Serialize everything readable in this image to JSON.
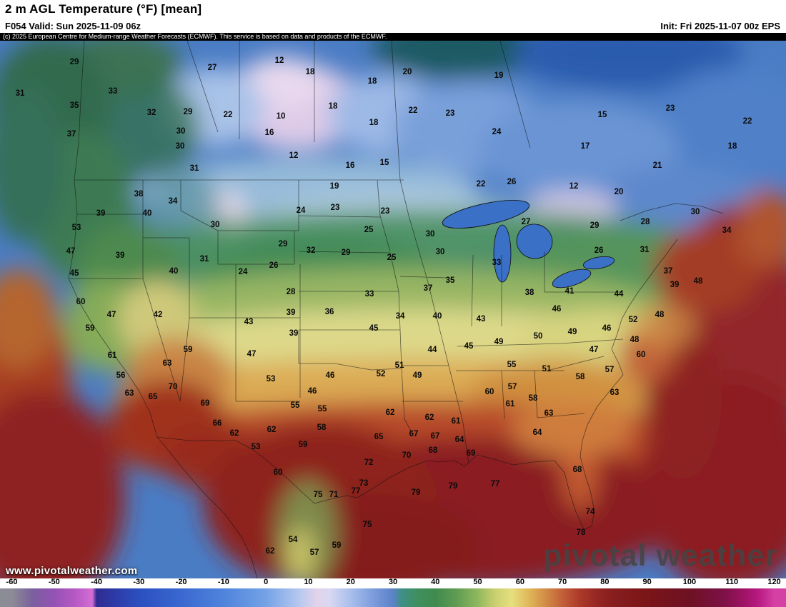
{
  "header": {
    "title": "2 m AGL Temperature (°F) [mean]",
    "valid": "F054 Valid: Sun 2025-11-09 06z",
    "init": "Init: Fri 2025-11-07 00z EPS",
    "copyright": "(c) 2025 European Centre for Medium-range Weather Forecasts (ECMWF). This service is based on data and products of the ECMWF."
  },
  "watermark": {
    "site": "www.pivotalweather.com",
    "brand": "pivotal weather"
  },
  "colorbar": {
    "min": -60,
    "max": 120,
    "tick_values": [
      -60,
      -50,
      -40,
      -30,
      -20,
      -10,
      0,
      10,
      20,
      30,
      40,
      50,
      60,
      70,
      80,
      90,
      100,
      110,
      120
    ],
    "stops": [
      {
        "v": -60,
        "c": "#8c8c96"
      },
      {
        "v": -55,
        "c": "#7a5f9e"
      },
      {
        "v": -50,
        "c": "#9452b4"
      },
      {
        "v": -45,
        "c": "#b758c4"
      },
      {
        "v": -41,
        "c": "#d36ed4"
      },
      {
        "v": -40,
        "c": "#2e2b92"
      },
      {
        "v": -30,
        "c": "#2b4fc0"
      },
      {
        "v": -20,
        "c": "#3a68d0"
      },
      {
        "v": -10,
        "c": "#4f84dc"
      },
      {
        "v": 0,
        "c": "#74a2e6"
      },
      {
        "v": 8,
        "c": "#b7c9ef"
      },
      {
        "v": 12,
        "c": "#e2d2ea"
      },
      {
        "v": 15,
        "c": "#d8d8f2"
      },
      {
        "v": 20,
        "c": "#a9bfec"
      },
      {
        "v": 25,
        "c": "#7f9ede"
      },
      {
        "v": 30,
        "c": "#5b82c8"
      },
      {
        "v": 32,
        "c": "#3f8f86"
      },
      {
        "v": 36,
        "c": "#3f8f5e"
      },
      {
        "v": 40,
        "c": "#418a4f"
      },
      {
        "v": 45,
        "c": "#5f9c52"
      },
      {
        "v": 50,
        "c": "#8fb85e"
      },
      {
        "v": 54,
        "c": "#c9cf6e"
      },
      {
        "v": 58,
        "c": "#e6df7f"
      },
      {
        "v": 62,
        "c": "#e0b85a"
      },
      {
        "v": 66,
        "c": "#d28c46"
      },
      {
        "v": 70,
        "c": "#c25f38"
      },
      {
        "v": 74,
        "c": "#ad3a2a"
      },
      {
        "v": 78,
        "c": "#962722"
      },
      {
        "v": 82,
        "c": "#871d1e"
      },
      {
        "v": 90,
        "c": "#7a1518"
      },
      {
        "v": 100,
        "c": "#6e1123"
      },
      {
        "v": 108,
        "c": "#7c1146"
      },
      {
        "v": 112,
        "c": "#99125f"
      },
      {
        "v": 116,
        "c": "#b5187f"
      },
      {
        "v": 120,
        "c": "#d440a4"
      }
    ]
  },
  "chart_data": {
    "type": "heatmap",
    "title": "2 m AGL Temperature (°F) [mean]",
    "units": "°F",
    "model": "EPS",
    "forecast_hour": "F054",
    "valid_time": "Sun 2025-11-09 06z",
    "init_time": "Fri 2025-11-07 00z",
    "colorbar_range": [
      -60,
      120
    ],
    "labels": [
      [
        29,
        104,
        87
      ],
      [
        27,
        297,
        95
      ],
      [
        12,
        391,
        85
      ],
      [
        18,
        434,
        101
      ],
      [
        18,
        521,
        114
      ],
      [
        20,
        570,
        101
      ],
      [
        19,
        698,
        106
      ],
      [
        31,
        28,
        131
      ],
      [
        33,
        158,
        128
      ],
      [
        35,
        104,
        148
      ],
      [
        32,
        212,
        158
      ],
      [
        29,
        263,
        157
      ],
      [
        22,
        319,
        161
      ],
      [
        10,
        393,
        163
      ],
      [
        18,
        466,
        149
      ],
      [
        22,
        578,
        155
      ],
      [
        23,
        630,
        159
      ],
      [
        15,
        843,
        161
      ],
      [
        23,
        938,
        152
      ],
      [
        22,
        1046,
        170
      ],
      [
        37,
        100,
        188
      ],
      [
        30,
        253,
        184
      ],
      [
        16,
        377,
        186
      ],
      [
        18,
        523,
        172
      ],
      [
        24,
        695,
        185
      ],
      [
        30,
        252,
        205
      ],
      [
        12,
        411,
        218
      ],
      [
        16,
        490,
        232
      ],
      [
        15,
        538,
        228
      ],
      [
        17,
        819,
        205
      ],
      [
        21,
        920,
        232
      ],
      [
        18,
        1025,
        205
      ],
      [
        31,
        272,
        236
      ],
      [
        19,
        468,
        261
      ],
      [
        22,
        673,
        258
      ],
      [
        26,
        716,
        255
      ],
      [
        12,
        803,
        261
      ],
      [
        20,
        866,
        269
      ],
      [
        38,
        194,
        272
      ],
      [
        34,
        242,
        282
      ],
      [
        24,
        421,
        295
      ],
      [
        23,
        469,
        291
      ],
      [
        23,
        539,
        296
      ],
      [
        30,
        973,
        297
      ],
      [
        39,
        141,
        299
      ],
      [
        40,
        206,
        299
      ],
      [
        53,
        107,
        319
      ],
      [
        30,
        301,
        315
      ],
      [
        25,
        516,
        322
      ],
      [
        30,
        602,
        328
      ],
      [
        27,
        736,
        311
      ],
      [
        29,
        832,
        316
      ],
      [
        28,
        903,
        311
      ],
      [
        34,
        1017,
        323
      ],
      [
        47,
        99,
        352
      ],
      [
        39,
        168,
        358
      ],
      [
        29,
        396,
        342
      ],
      [
        32,
        435,
        351
      ],
      [
        29,
        484,
        354
      ],
      [
        25,
        548,
        361
      ],
      [
        30,
        616,
        353
      ],
      [
        33,
        695,
        368
      ],
      [
        26,
        838,
        351
      ],
      [
        31,
        902,
        350
      ],
      [
        37,
        935,
        380
      ],
      [
        45,
        104,
        383
      ],
      [
        31,
        286,
        363
      ],
      [
        24,
        340,
        381
      ],
      [
        26,
        383,
        372
      ],
      [
        40,
        243,
        380
      ],
      [
        28,
        407,
        409
      ],
      [
        35,
        630,
        393
      ],
      [
        33,
        517,
        412
      ],
      [
        37,
        599,
        404
      ],
      [
        38,
        741,
        410
      ],
      [
        41,
        797,
        408
      ],
      [
        44,
        866,
        412
      ],
      [
        39,
        944,
        399
      ],
      [
        48,
        977,
        394
      ],
      [
        60,
        113,
        423
      ],
      [
        47,
        156,
        441
      ],
      [
        42,
        221,
        441
      ],
      [
        39,
        407,
        438
      ],
      [
        36,
        461,
        437
      ],
      [
        43,
        348,
        451
      ],
      [
        34,
        560,
        443
      ],
      [
        40,
        612,
        443
      ],
      [
        43,
        673,
        447
      ],
      [
        46,
        779,
        433
      ],
      [
        52,
        886,
        448
      ],
      [
        48,
        923,
        441
      ],
      [
        59,
        126,
        460
      ],
      [
        39,
        411,
        467
      ],
      [
        45,
        523,
        460
      ],
      [
        49,
        698,
        479
      ],
      [
        50,
        753,
        471
      ],
      [
        49,
        801,
        465
      ],
      [
        46,
        849,
        460
      ],
      [
        47,
        831,
        490
      ],
      [
        48,
        888,
        476
      ],
      [
        60,
        897,
        497
      ],
      [
        61,
        157,
        498
      ],
      [
        59,
        263,
        490
      ],
      [
        63,
        234,
        509
      ],
      [
        47,
        352,
        496
      ],
      [
        44,
        605,
        490
      ],
      [
        45,
        656,
        485
      ],
      [
        51,
        559,
        512
      ],
      [
        49,
        584,
        526
      ],
      [
        55,
        716,
        511
      ],
      [
        51,
        765,
        517
      ],
      [
        56,
        169,
        526
      ],
      [
        53,
        379,
        531
      ],
      [
        46,
        462,
        526
      ],
      [
        52,
        533,
        524
      ],
      [
        57,
        853,
        518
      ],
      [
        58,
        812,
        528
      ],
      [
        70,
        242,
        542
      ],
      [
        57,
        717,
        542
      ],
      [
        63,
        181,
        551
      ],
      [
        65,
        214,
        556
      ],
      [
        69,
        287,
        565
      ],
      [
        46,
        437,
        548
      ],
      [
        55,
        413,
        568
      ],
      [
        55,
        451,
        573
      ],
      [
        62,
        546,
        578
      ],
      [
        60,
        685,
        549
      ],
      [
        61,
        714,
        566
      ],
      [
        58,
        746,
        558
      ],
      [
        63,
        768,
        579
      ],
      [
        63,
        860,
        550
      ],
      [
        66,
        304,
        593
      ],
      [
        62,
        328,
        607
      ],
      [
        62,
        380,
        602
      ],
      [
        58,
        450,
        599
      ],
      [
        62,
        601,
        585
      ],
      [
        61,
        638,
        590
      ],
      [
        64,
        752,
        606
      ],
      [
        65,
        530,
        612
      ],
      [
        67,
        579,
        608
      ],
      [
        67,
        609,
        611
      ],
      [
        64,
        643,
        616
      ],
      [
        69,
        659,
        635
      ],
      [
        53,
        358,
        626
      ],
      [
        59,
        424,
        623
      ],
      [
        68,
        606,
        631
      ],
      [
        68,
        808,
        658
      ],
      [
        72,
        516,
        648
      ],
      [
        70,
        569,
        638
      ],
      [
        60,
        389,
        662
      ],
      [
        73,
        509,
        677
      ],
      [
        79,
        582,
        690
      ],
      [
        79,
        634,
        681
      ],
      [
        77,
        693,
        678
      ],
      [
        75,
        445,
        693
      ],
      [
        71,
        467,
        693
      ],
      [
        77,
        498,
        688
      ],
      [
        74,
        826,
        717
      ],
      [
        78,
        813,
        746
      ],
      [
        75,
        514,
        735
      ],
      [
        54,
        410,
        756
      ],
      [
        57,
        440,
        774
      ],
      [
        59,
        471,
        764
      ],
      [
        62,
        378,
        772
      ]
    ]
  }
}
